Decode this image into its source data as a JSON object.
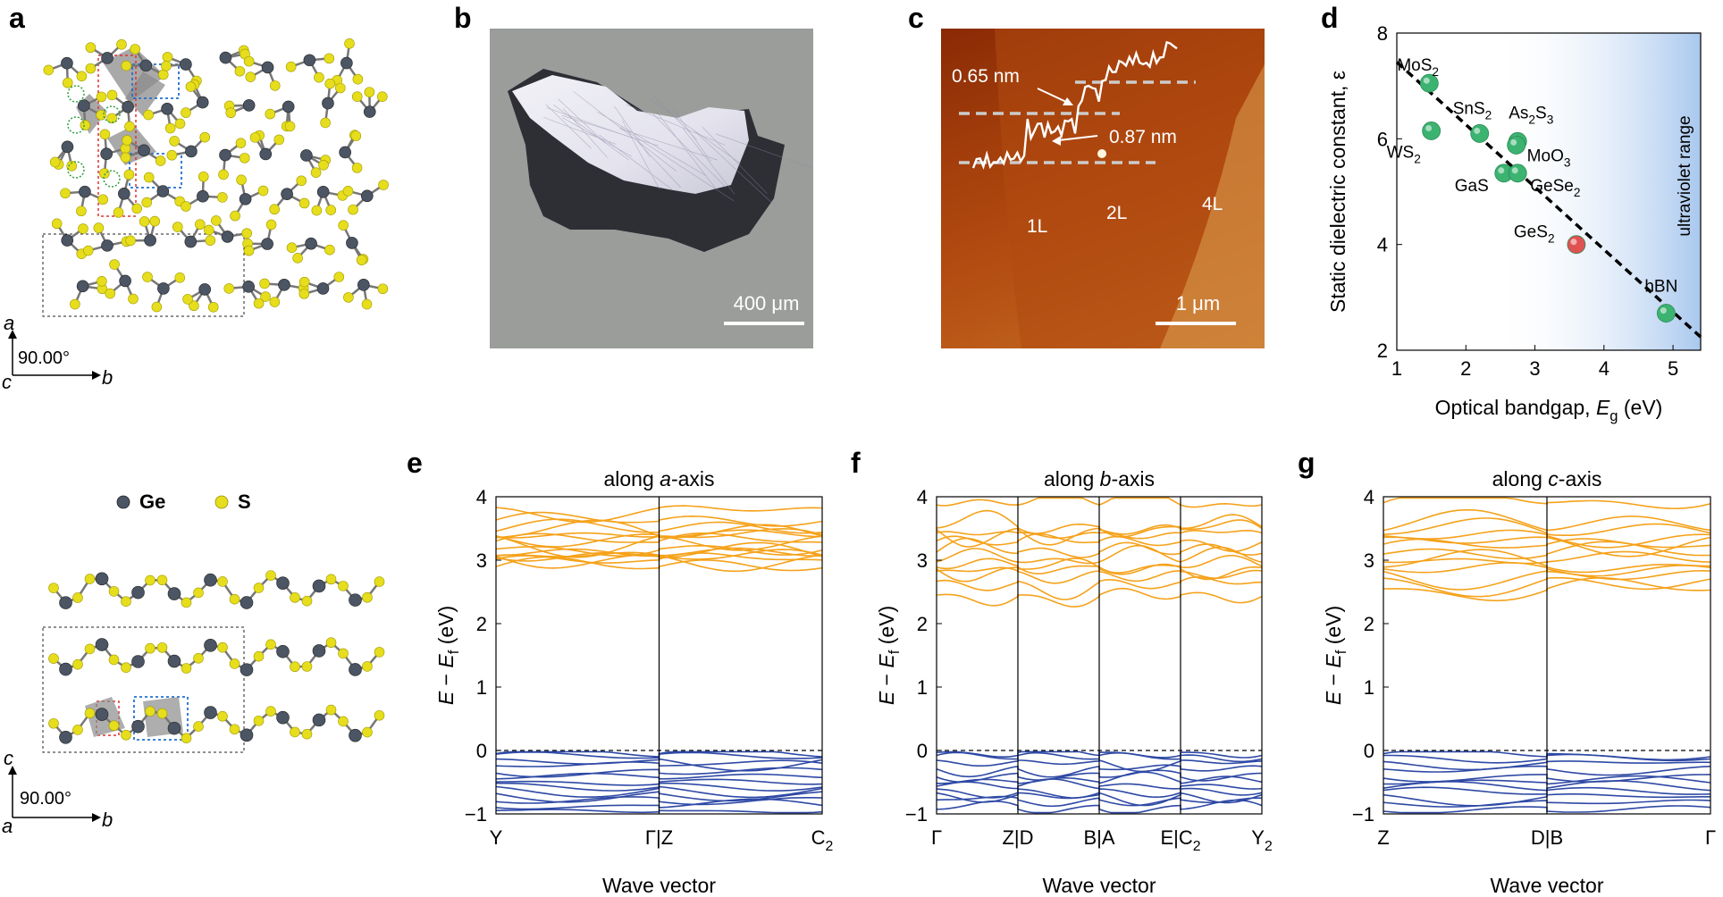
{
  "panel_letters": {
    "a": "a",
    "b": "b",
    "c": "c",
    "d": "d",
    "e": "e",
    "f": "f",
    "g": "g"
  },
  "panel_a": {
    "axis_top": {
      "up": "a",
      "right": "b",
      "origin": "c",
      "angle": "90.00°"
    },
    "axis_bottom": {
      "up": "c",
      "right": "b",
      "origin": "a",
      "angle": "90.00°"
    },
    "legend": {
      "ge": "Ge",
      "s": "S"
    },
    "colors": {
      "ge": "#4b5563",
      "s": "#e6de1c",
      "polyhedra": "#8c8c8c"
    }
  },
  "panel_b": {
    "scale_label": "400 μm"
  },
  "panel_c": {
    "scale_label": "1 μm",
    "step1": "0.65 nm",
    "step2": "0.87 nm",
    "regions": [
      "1L",
      "2L",
      "4L"
    ]
  },
  "chart_data": [
    {
      "id": "d",
      "type": "scatter",
      "xlabel": "Optical bandgap, E_g (eV)",
      "xlabel_main": "Optical bandgap, ",
      "xlabel_sym": "E",
      "xlabel_sub": "g",
      "xlabel_unit": " (eV)",
      "ylabel": "Static dielectric constant, ε",
      "xlim": [
        1,
        5.4
      ],
      "ylim": [
        2,
        8
      ],
      "xticks": [
        "1",
        "2",
        "3",
        "4",
        "5"
      ],
      "yticks": [
        "2",
        "4",
        "6",
        "8"
      ],
      "band_label": "ultraviolet range",
      "points": [
        {
          "name": "MoS2",
          "x": 1.47,
          "y": 7.05,
          "color": "#3cb371",
          "lbl": "MoS",
          "sub": "2"
        },
        {
          "name": "WS2",
          "x": 1.5,
          "y": 6.15,
          "color": "#3cb371",
          "lbl": "WS",
          "sub": "2"
        },
        {
          "name": "SnS2",
          "x": 2.2,
          "y": 6.1,
          "color": "#3cb371",
          "lbl": "SnS",
          "sub": "2"
        },
        {
          "name": "As2S3",
          "x": 2.75,
          "y": 5.95,
          "color": "#3cb371",
          "lbl": "As",
          "sub": "2S3"
        },
        {
          "name": "MoO3",
          "x": 2.73,
          "y": 5.88,
          "color": "#3cb371",
          "lbl": "MoO",
          "sub": "3"
        },
        {
          "name": "GaS",
          "x": 2.55,
          "y": 5.35,
          "color": "#3cb371",
          "lbl": "GaS",
          "sub": ""
        },
        {
          "name": "GeSe2",
          "x": 2.75,
          "y": 5.35,
          "color": "#3cb371",
          "lbl": "GeSe",
          "sub": "2"
        },
        {
          "name": "GeS2",
          "x": 3.6,
          "y": 4.0,
          "color": "#e05252",
          "lbl": "GeS",
          "sub": "2"
        },
        {
          "name": "hBN",
          "x": 4.9,
          "y": 2.7,
          "color": "#3cb371",
          "lbl": "hBN",
          "sub": ""
        }
      ],
      "fit_line": {
        "x": [
          1,
          5.4
        ],
        "y": [
          7.45,
          2.25
        ]
      }
    },
    {
      "id": "e",
      "type": "line",
      "title": "along a-axis",
      "title_main": "along ",
      "title_sym": "a",
      "title_suffix": "-axis",
      "ylabel": "E − E_f (eV)",
      "xlabel": "Wave vector",
      "ylim": [
        -1,
        4
      ],
      "yticks": [
        "−1",
        "0",
        "1",
        "2",
        "3",
        "4"
      ],
      "kpoints": [
        "Y",
        "Γ|Z",
        "C2"
      ],
      "kpoint_main": [
        "Y",
        "Γ|Z",
        "C"
      ],
      "kpoint_sub": [
        "",
        "",
        "2"
      ],
      "segments": 2,
      "conduction": [
        2.9,
        2.95,
        3.0,
        3.05,
        3.1,
        3.15,
        3.2,
        3.25,
        3.3,
        3.35,
        3.4,
        3.45,
        3.5,
        3.6,
        3.75
      ],
      "valence": [
        -0.05,
        -0.1,
        -0.18,
        -0.25,
        -0.32,
        -0.4,
        -0.48,
        -0.55,
        -0.62,
        -0.7,
        -0.78,
        -0.85,
        -0.92
      ]
    },
    {
      "id": "f",
      "type": "line",
      "title": "along b-axis",
      "title_main": "along ",
      "title_sym": "b",
      "title_suffix": "-axis",
      "ylabel": "E − E_f (eV)",
      "xlabel": "Wave vector",
      "ylim": [
        -1,
        4
      ],
      "yticks": [
        "−1",
        "0",
        "1",
        "2",
        "3",
        "4"
      ],
      "kpoints": [
        "Γ",
        "Z|D",
        "B|A",
        "E|C2",
        "Y2"
      ],
      "kpoint_main": [
        "Γ",
        "Z|D",
        "B|A",
        "E|C",
        "Y"
      ],
      "kpoint_sub": [
        "",
        "",
        "",
        "2",
        "2"
      ],
      "segments": 4,
      "conduction": [
        2.45,
        2.6,
        2.75,
        2.85,
        2.95,
        3.05,
        3.15,
        3.25,
        3.35,
        3.45,
        3.55,
        3.95
      ],
      "valence": [
        -0.03,
        -0.12,
        -0.2,
        -0.3,
        -0.38,
        -0.47,
        -0.55,
        -0.64,
        -0.72,
        -0.8,
        -0.9
      ]
    },
    {
      "id": "g",
      "type": "line",
      "title": "along c-axis",
      "title_main": "along ",
      "title_sym": "c",
      "title_suffix": "-axis",
      "ylabel": "E − E_f (eV)",
      "xlabel": "Wave vector",
      "ylim": [
        -1,
        4
      ],
      "yticks": [
        "−1",
        "0",
        "1",
        "2",
        "3",
        "4"
      ],
      "kpoints": [
        "Z",
        "D|B",
        "Γ"
      ],
      "kpoint_main": [
        "Z",
        "D|B",
        "Γ"
      ],
      "kpoint_sub": [
        "",
        "",
        ""
      ],
      "segments": 2,
      "conduction": [
        2.55,
        2.65,
        2.75,
        2.85,
        2.95,
        3.05,
        3.12,
        3.2,
        3.28,
        3.35,
        3.45,
        3.55,
        3.95
      ],
      "valence": [
        -0.05,
        -0.12,
        -0.22,
        -0.3,
        -0.4,
        -0.48,
        -0.58,
        -0.66,
        -0.75,
        -0.84,
        -0.93
      ]
    }
  ]
}
